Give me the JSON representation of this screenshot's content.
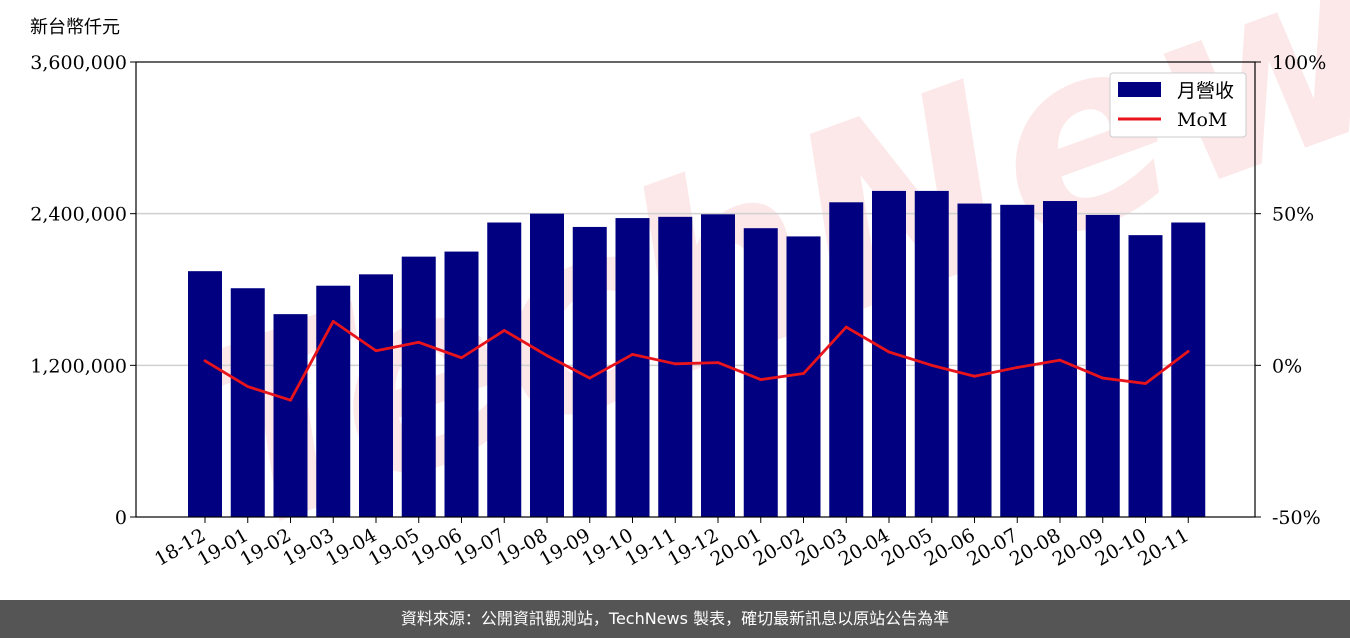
{
  "chart_data": {
    "type": "bar",
    "unit_label": "新台幣仟元",
    "categories": [
      "18-12",
      "19-01",
      "19-02",
      "19-03",
      "19-04",
      "19-05",
      "19-06",
      "19-07",
      "19-08",
      "19-09",
      "19-10",
      "19-11",
      "19-12",
      "20-01",
      "20-02",
      "20-03",
      "20-04",
      "20-05",
      "20-06",
      "20-07",
      "20-08",
      "20-09",
      "20-10",
      "20-11"
    ],
    "series": [
      {
        "name": "月營收",
        "kind": "bar",
        "axis": "left",
        "color": "#000080",
        "values": [
          1945000,
          1810000,
          1605000,
          1830000,
          1920000,
          2060000,
          2100000,
          2330000,
          2400000,
          2295000,
          2365000,
          2375000,
          2395000,
          2285000,
          2220000,
          2490000,
          2580000,
          2580000,
          2480000,
          2470000,
          2500000,
          2390000,
          2230000,
          2330000
        ]
      },
      {
        "name": "MoM",
        "kind": "line",
        "axis": "right",
        "color": "#e8141c",
        "values": [
          1.5,
          -7.0,
          -11.5,
          14.5,
          4.8,
          7.6,
          2.5,
          11.5,
          3.2,
          -4.2,
          3.6,
          0.5,
          0.9,
          -4.7,
          -2.7,
          12.6,
          4.4,
          0.0,
          -3.6,
          -0.7,
          1.7,
          -4.2,
          -6.0,
          4.6
        ]
      }
    ],
    "y_left": {
      "lim": [
        0,
        3600000
      ],
      "ticks": [
        "0",
        "1,200,000",
        "2,400,000",
        "3,600,000"
      ],
      "tick_values": [
        0,
        1200000,
        2400000,
        3600000
      ]
    },
    "y_right": {
      "lim": [
        -50,
        100
      ],
      "ticks": [
        "-50%",
        "0%",
        "50%",
        "100%"
      ],
      "tick_values": [
        -50,
        0,
        50,
        100
      ]
    },
    "grid": "horizontal",
    "legend_position": "top-right"
  },
  "watermark_text": "TechNews",
  "footer_text": "資料來源：公開資訊觀測站，TechNews 製表，確切最新訊息以原站公告為準"
}
